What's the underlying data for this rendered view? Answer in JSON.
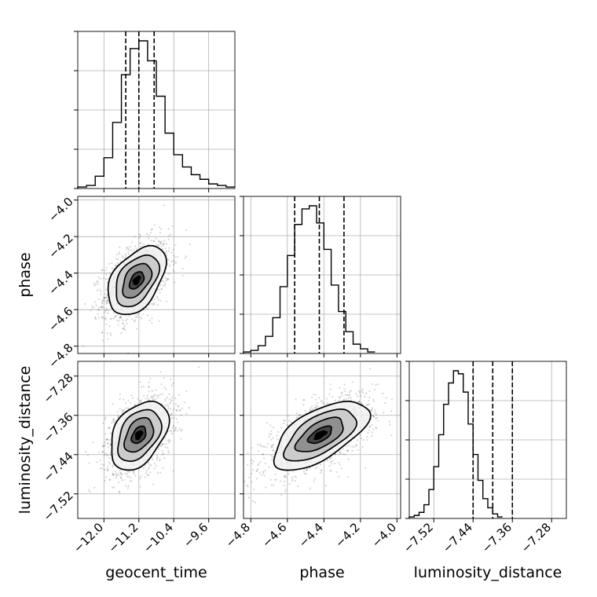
{
  "chart_data": {
    "type": "corner",
    "parameters": [
      "geocent_time",
      "phase",
      "luminosity_distance"
    ],
    "axis_labels": {
      "x": [
        "geocent_time",
        "phase",
        "luminosity_distance"
      ],
      "y": [
        "phase",
        "luminosity_distance"
      ]
    },
    "ranges": {
      "geocent_time": [
        -12.6,
        -9.0
      ],
      "phase": [
        -4.84,
        -3.98
      ],
      "luminosity_distance": [
        -7.57,
        -7.25
      ]
    },
    "ticks": {
      "geocent_time": {
        "values": [
          -12.0,
          -11.2,
          -10.4,
          -9.6
        ],
        "labels": [
          "−12.0",
          "−11.2",
          "−10.4",
          "−9.6"
        ]
      },
      "phase": {
        "values": [
          -4.8,
          -4.6,
          -4.4,
          -4.2,
          -4.0
        ],
        "labels": [
          "−4.8",
          "−4.6",
          "−4.4",
          "−4.2",
          "−4.0"
        ]
      },
      "luminosity_distance": {
        "values": [
          -7.52,
          -7.44,
          -7.36,
          -7.28
        ],
        "labels": [
          "−7.52",
          "−7.44",
          "−7.36",
          "−7.28"
        ]
      }
    },
    "diagonal": [
      {
        "parameter": "geocent_time",
        "bin_edges_start": -12.6,
        "bin_width": 0.2,
        "counts": [
          1,
          2,
          8,
          20,
          43,
          74,
          91,
          96,
          83,
          60,
          36,
          22,
          14,
          9,
          6,
          3,
          2,
          1
        ],
        "quantiles": [
          -11.5,
          -11.2,
          -10.85
        ]
      },
      {
        "parameter": "phase",
        "bin_edges_start": -4.84,
        "bin_width": 0.04,
        "counts": [
          1,
          2,
          5,
          11,
          23,
          43,
          63,
          83,
          93,
          95,
          84,
          67,
          44,
          27,
          14,
          6,
          3,
          1
        ],
        "quantiles": [
          -4.56,
          -4.425,
          -4.29
        ]
      },
      {
        "parameter": "luminosity_distance",
        "bin_edges_start": -7.57,
        "bin_width": 0.01,
        "counts": [
          1,
          2,
          4,
          9,
          19,
          34,
          55,
          75,
          89,
          97,
          95,
          83,
          62,
          42,
          25,
          13,
          7,
          3,
          1
        ],
        "quantiles": [
          -7.44,
          -7.4,
          -7.36
        ]
      }
    ],
    "pairs": [
      {
        "x": "geocent_time",
        "y": "phase",
        "center": [
          -11.25,
          -4.44
        ],
        "sd": [
          0.33,
          0.094
        ],
        "rho": 0.45
      },
      {
        "x": "geocent_time",
        "y": "luminosity_distance",
        "center": [
          -11.2,
          -7.4
        ],
        "sd": [
          0.33,
          0.035
        ],
        "rho": 0.4
      },
      {
        "x": "phase",
        "y": "luminosity_distance",
        "center": [
          -4.42,
          -7.4
        ],
        "sd": [
          0.13,
          0.035
        ],
        "rho": 0.62
      }
    ],
    "contour_levels_sigma": [
      0.5,
      1.0,
      1.5,
      2.0
    ],
    "grid": true
  }
}
